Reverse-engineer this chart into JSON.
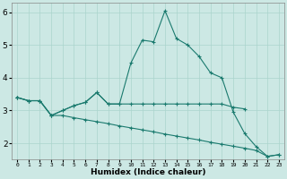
{
  "xlabel": "Humidex (Indice chaleur)",
  "x": [
    0,
    1,
    2,
    3,
    4,
    5,
    6,
    7,
    8,
    9,
    10,
    11,
    12,
    13,
    14,
    15,
    16,
    17,
    18,
    19,
    20,
    21,
    22,
    23
  ],
  "line1": [
    3.4,
    3.3,
    3.3,
    2.85,
    3.0,
    3.15,
    3.25,
    3.55,
    3.2,
    3.2,
    4.45,
    5.15,
    5.1,
    6.05,
    5.2,
    5.0,
    4.65,
    4.15,
    4.0,
    2.95,
    2.3,
    1.9,
    1.6,
    1.65
  ],
  "line2": [
    3.4,
    3.3,
    3.3,
    2.85,
    3.0,
    3.15,
    3.25,
    3.55,
    3.2,
    3.2,
    3.2,
    3.2,
    3.2,
    3.2,
    3.2,
    3.2,
    3.2,
    3.2,
    3.2,
    3.1,
    3.05,
    null,
    null,
    null
  ],
  "line3": [
    3.4,
    3.3,
    3.3,
    2.85,
    2.85,
    2.78,
    2.72,
    2.66,
    2.6,
    2.53,
    2.47,
    2.41,
    2.35,
    2.28,
    2.22,
    2.16,
    2.1,
    2.03,
    1.97,
    1.91,
    1.85,
    1.78,
    1.6,
    1.65
  ],
  "color": "#1a7a6e",
  "bg_color": "#cce8e4",
  "grid_color": "#aad4cc",
  "ylim": [
    1.5,
    6.3
  ],
  "yticks": [
    2,
    3,
    4,
    5,
    6
  ],
  "markersize": 3.5
}
